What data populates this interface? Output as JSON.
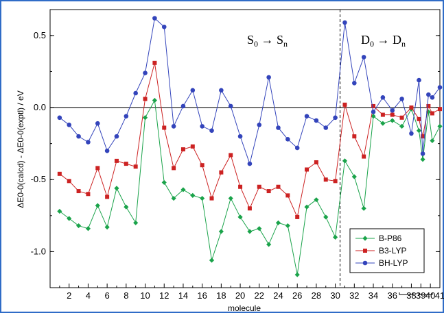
{
  "chart_data": {
    "type": "line",
    "xlabel": "molecule",
    "ylabel": "ΔE0-0(calcd) - ΔE0-0(exptl) / eV",
    "xlim": [
      0,
      41
    ],
    "ylim": [
      -1.25,
      0.68
    ],
    "y_ticks": [
      0.5,
      0.0,
      -0.5,
      -1.0
    ],
    "y_tick_labels": [
      "0.5",
      "0.0",
      "-0.5",
      "-1.0"
    ],
    "x_ticks": [
      2,
      4,
      6,
      8,
      10,
      12,
      14,
      16,
      18,
      20,
      22,
      24,
      26,
      28,
      30,
      32,
      34,
      36,
      38,
      39,
      40,
      41
    ],
    "x_tick_labels": [
      "2",
      "4",
      "6",
      "8",
      "10",
      "12",
      "14",
      "16",
      "18",
      "20",
      "22",
      "24",
      "26",
      "28",
      "30",
      "32",
      "34",
      "36",
      "38",
      "39",
      "40",
      "41"
    ],
    "x": [
      1,
      2,
      3,
      4,
      5,
      6,
      7,
      8,
      9,
      10,
      11,
      12,
      13,
      14,
      15,
      16,
      17,
      18,
      19,
      20,
      21,
      22,
      23,
      24,
      25,
      26,
      27,
      28,
      29,
      30,
      31,
      32,
      33,
      34,
      35,
      36,
      37,
      38,
      38.8,
      39.2,
      39.8,
      40.2,
      41
    ],
    "series": [
      {
        "name": "B-P86",
        "color": "#1aa34a",
        "marker": "diamond",
        "values": [
          -0.72,
          -0.77,
          -0.82,
          -0.84,
          -0.68,
          -0.83,
          -0.56,
          -0.69,
          -0.8,
          -0.07,
          0.05,
          -0.52,
          -0.63,
          -0.57,
          -0.61,
          -0.63,
          -1.06,
          -0.86,
          -0.63,
          -0.76,
          -0.86,
          -0.84,
          -0.95,
          -0.8,
          -0.82,
          -1.16,
          -0.69,
          -0.64,
          -0.76,
          -0.9,
          -0.37,
          -0.48,
          -0.7,
          -0.06,
          -0.11,
          -0.09,
          -0.13,
          -0.01,
          -0.16,
          -0.36,
          -0.03,
          -0.23,
          -0.13
        ]
      },
      {
        "name": "B3-LYP",
        "color": "#cc2222",
        "marker": "square",
        "values": [
          -0.46,
          -0.51,
          -0.58,
          -0.6,
          -0.42,
          -0.62,
          -0.37,
          -0.39,
          -0.41,
          0.06,
          0.31,
          -0.14,
          -0.42,
          -0.29,
          -0.27,
          -0.4,
          -0.63,
          -0.45,
          -0.33,
          -0.55,
          -0.7,
          -0.55,
          -0.58,
          -0.55,
          -0.61,
          -0.76,
          -0.43,
          -0.38,
          -0.5,
          -0.51,
          0.02,
          -0.2,
          -0.34,
          0.01,
          -0.05,
          -0.05,
          -0.07,
          0.0,
          -0.08,
          -0.2,
          0.01,
          -0.04,
          -0.01
        ]
      },
      {
        "name": "BH-LYP",
        "color": "#3344bb",
        "marker": "circle",
        "values": [
          -0.07,
          -0.12,
          -0.2,
          -0.24,
          -0.11,
          -0.3,
          -0.2,
          -0.06,
          0.1,
          0.24,
          0.62,
          0.56,
          -0.13,
          0.01,
          0.12,
          -0.13,
          -0.16,
          0.12,
          0.01,
          -0.2,
          -0.39,
          -0.12,
          0.21,
          -0.14,
          -0.22,
          -0.28,
          -0.06,
          -0.09,
          -0.14,
          -0.07,
          0.59,
          0.17,
          0.35,
          -0.03,
          0.07,
          -0.02,
          0.06,
          -0.18,
          0.19,
          -0.32,
          0.09,
          0.07,
          0.14
        ]
      }
    ],
    "reference_line": 0.0,
    "divider_x": 30.5,
    "annotations": [
      {
        "text_main": "S",
        "sub1": "0",
        "arrow": " → ",
        "text_main2": "S",
        "sub2": "n"
      },
      {
        "text_main": "D",
        "sub1": "0",
        "arrow": " → ",
        "text_main2": "D",
        "sub2": "n"
      }
    ],
    "legend_position": "bottom-right",
    "grid": false
  }
}
